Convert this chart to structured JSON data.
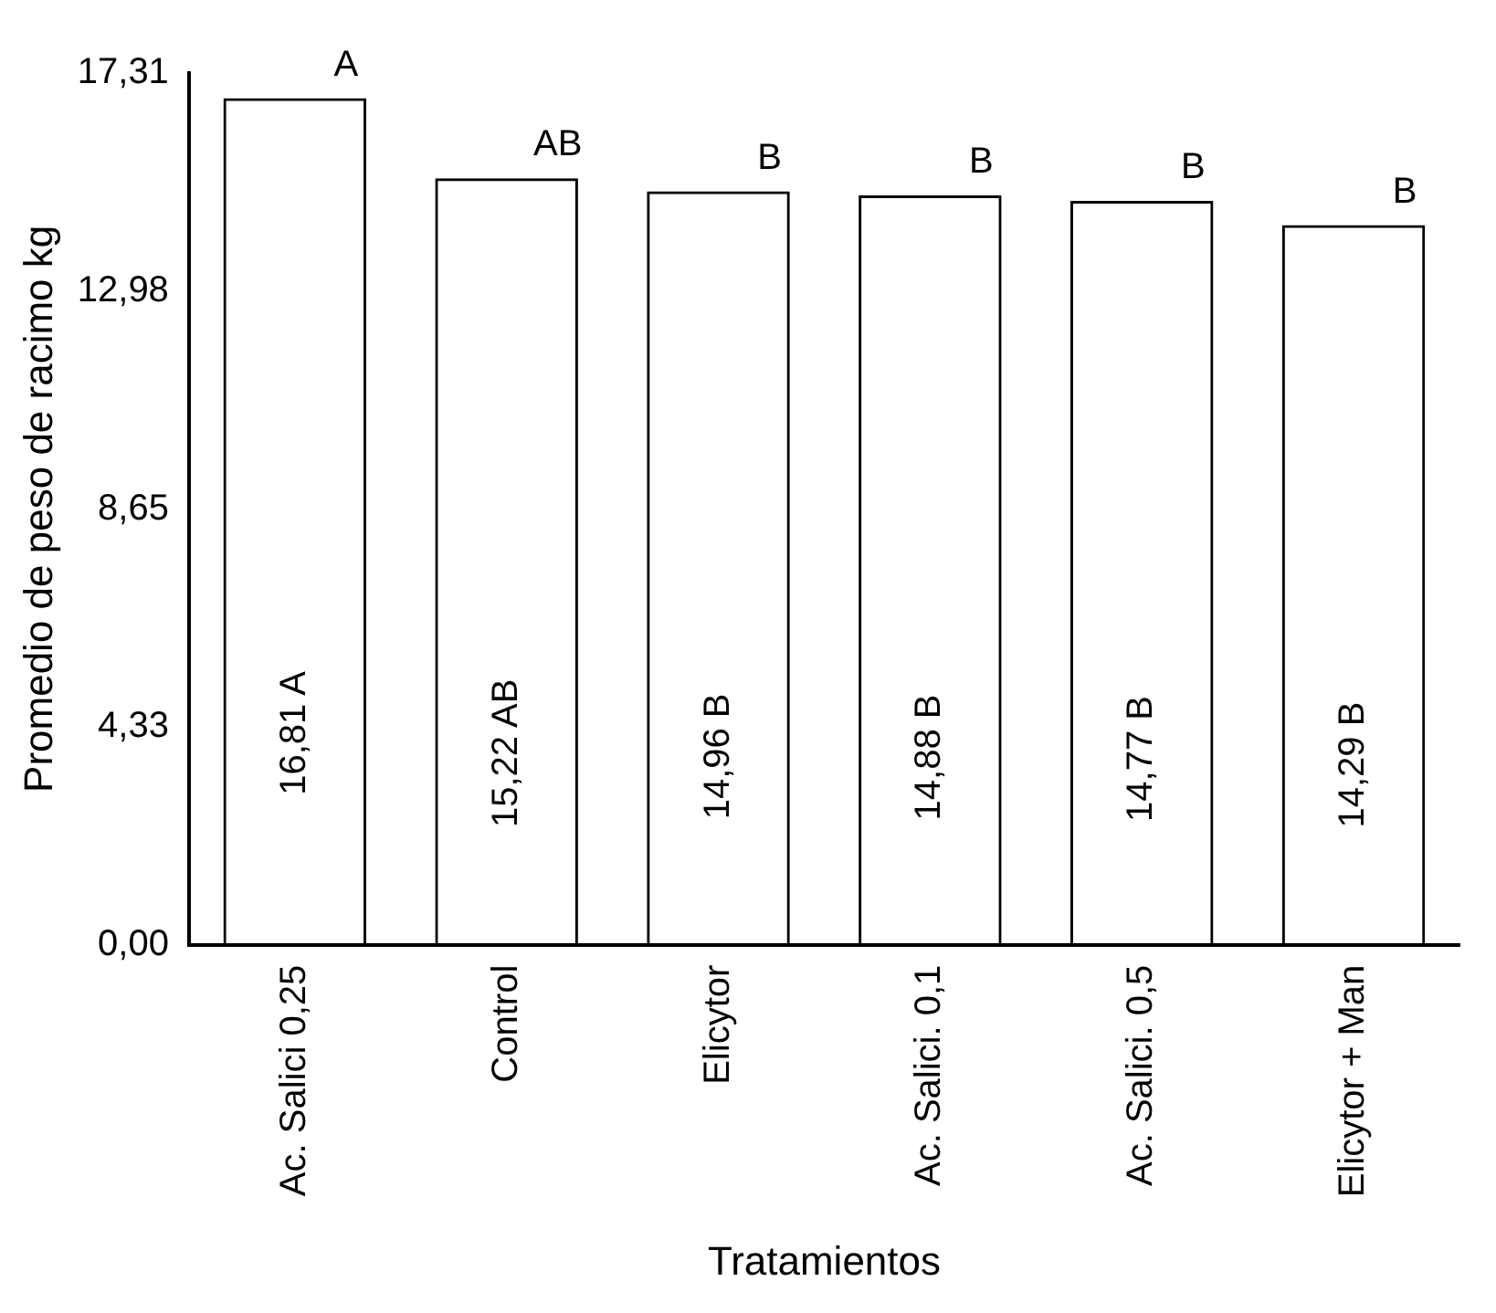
{
  "chart_data": {
    "type": "bar",
    "xlabel": "Tratamientos",
    "ylabel": "Promedio de peso de racimo kg",
    "categories": [
      "Ac. Salici 0,25",
      "Control",
      "Elicytor",
      "Ac. Salici. 0,1",
      "Ac. Salici. 0,5",
      "Elicytor + Man"
    ],
    "values": [
      16.81,
      15.22,
      14.96,
      14.88,
      14.77,
      14.29
    ],
    "value_labels": [
      "16,81 A",
      "15,22 AB",
      "14,96 B",
      "14,88 B",
      "14,77 B",
      "14,29 B"
    ],
    "color": "#000000",
    "ylim": [
      0,
      17.31
    ],
    "yticks": [
      {
        "value": 0,
        "label": "0,00"
      },
      {
        "value": 4.33,
        "label": "4,33"
      },
      {
        "value": 8.65,
        "label": "8,65"
      },
      {
        "value": 12.98,
        "label": "12,98"
      },
      {
        "value": 17.31,
        "label": "17,31"
      }
    ],
    "annotations": [
      {
        "text": "A",
        "x": "Ac. Salici 0,25",
        "y": 16.81
      },
      {
        "text": "AB",
        "x": "Control",
        "y": 15.22
      },
      {
        "text": "B",
        "x": "Elicytor",
        "y": 14.96
      },
      {
        "text": "B",
        "x": "Ac. Salici. 0,1",
        "y": 14.88
      },
      {
        "text": "B",
        "x": "Ac. Salici. 0,5",
        "y": 14.77
      },
      {
        "text": "B",
        "x": "Elicytor + Man",
        "y": 14.29
      }
    ],
    "grid": false,
    "legend": false
  }
}
